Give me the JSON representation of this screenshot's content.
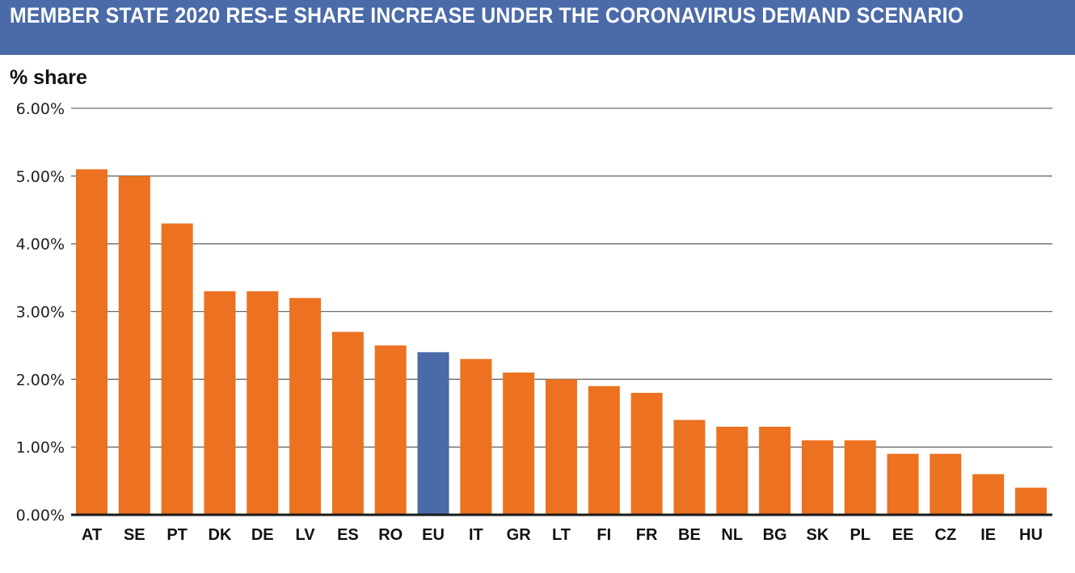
{
  "chart_data": {
    "type": "bar",
    "title": "MEMBER STATE 2020 RES-E SHARE INCREASE UNDER THE CORONAVIRUS DEMAND SCENARIO",
    "ylabel": "% share",
    "xlabel": "",
    "ylim": [
      0,
      6
    ],
    "yticks": [
      0,
      1,
      2,
      3,
      4,
      5,
      6
    ],
    "ytick_labels": [
      "0.00%",
      "1.00%",
      "2.00%",
      "3.00%",
      "4.00%",
      "5.00%",
      "6.00%"
    ],
    "grid": true,
    "categories": [
      "AT",
      "SE",
      "PT",
      "DK",
      "DE",
      "LV",
      "ES",
      "RO",
      "EU",
      "IT",
      "GR",
      "LT",
      "FI",
      "FR",
      "BE",
      "NL",
      "BG",
      "SK",
      "PL",
      "EE",
      "CZ",
      "IE",
      "HU"
    ],
    "values": [
      5.1,
      5.0,
      4.3,
      3.3,
      3.3,
      3.2,
      2.7,
      2.5,
      2.4,
      2.3,
      2.1,
      2.0,
      1.9,
      1.8,
      1.4,
      1.3,
      1.3,
      1.1,
      1.1,
      0.9,
      0.9,
      0.6,
      0.4
    ],
    "highlight_category": "EU",
    "colors": {
      "bar": "#ec7120",
      "highlight": "#4a6aa8",
      "title_bg": "#4a6aa8"
    }
  }
}
